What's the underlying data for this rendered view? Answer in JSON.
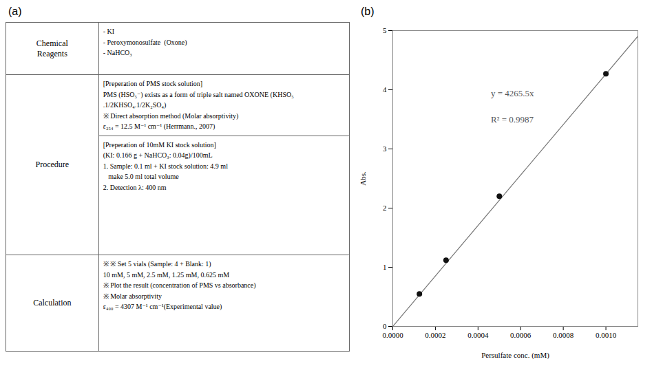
{
  "chart_data": [
    {
      "type": "table",
      "title": "(a)",
      "rows": [
        {
          "header": "Chemical\nReagents",
          "blocks": [
            [
              "- KI",
              "- Peroxymonosulfate  (Oxone)",
              "- NaHCO₃"
            ]
          ]
        },
        {
          "header": "Procedure",
          "blocks": [
            [
              "[Preperation of PMS stock solution]",
              "PMS (HSO₅⁻) exists as a form of triple salt named OXONE (KHSO₅",
              ".1/2KHSO₄.1/2K₂SO₄)",
              "※ Direct absorption method (Molar absorptivity)",
              "ε₂₅₄ = 12.5 M⁻¹ cm⁻¹ (Herrmann., 2007)"
            ],
            [
              "[Preperation of 10mM KI stock solution]",
              "(KI: 0.166 g + NaHCO₃: 0.04g)/100mL",
              "1. Sample: 0.1 ml + KI stock solution: 4.9 ml",
              "   make 5.0 ml total volume",
              "2. Detection λ: 400 nm"
            ]
          ]
        },
        {
          "header": "Calculation",
          "blocks": [
            [
              "※ ※ Set 5 vials (Sample: 4 + Blank: 1)",
              "10 mM, 5 mM, 2.5 mM, 1.25 mM, 0.625 mM",
              "※ Plot the result (concentration of PMS vs absorbance)",
              "※ Molar absorptivity",
              "ε₄₀₀ = 4307 M⁻¹ cm⁻¹(Experimental value)"
            ]
          ]
        }
      ]
    },
    {
      "type": "scatter",
      "title": "(b)",
      "x": [
        0.000125,
        0.00025,
        0.0005,
        0.001
      ],
      "values": [
        0.55,
        1.12,
        2.2,
        4.27
      ],
      "color": "#111111",
      "fit_line": {
        "type": "line",
        "x": [
          0.0,
          0.00115
        ],
        "values": [
          0,
          4.905325
        ],
        "color": "#777777"
      },
      "annotations": [
        "y = 4265.5x",
        "R² = 0.9987"
      ],
      "xlabel": "Persulfate conc. (mM)",
      "ylabel": "Abs.",
      "xlim": [
        0.0,
        0.00115
      ],
      "ylim": [
        0,
        5
      ],
      "xticks": [
        {
          "value": 0,
          "label": "0.0000"
        },
        {
          "value": 0.0002,
          "label": "0.0002"
        },
        {
          "value": 0.0004,
          "label": "0.0004"
        },
        {
          "value": 0.0006,
          "label": "0.0006"
        },
        {
          "value": 0.0008,
          "label": "0.0008"
        },
        {
          "value": 0.001,
          "label": "0.0010"
        }
      ],
      "yticks": [
        0,
        1,
        2,
        3,
        4,
        5
      ]
    }
  ]
}
